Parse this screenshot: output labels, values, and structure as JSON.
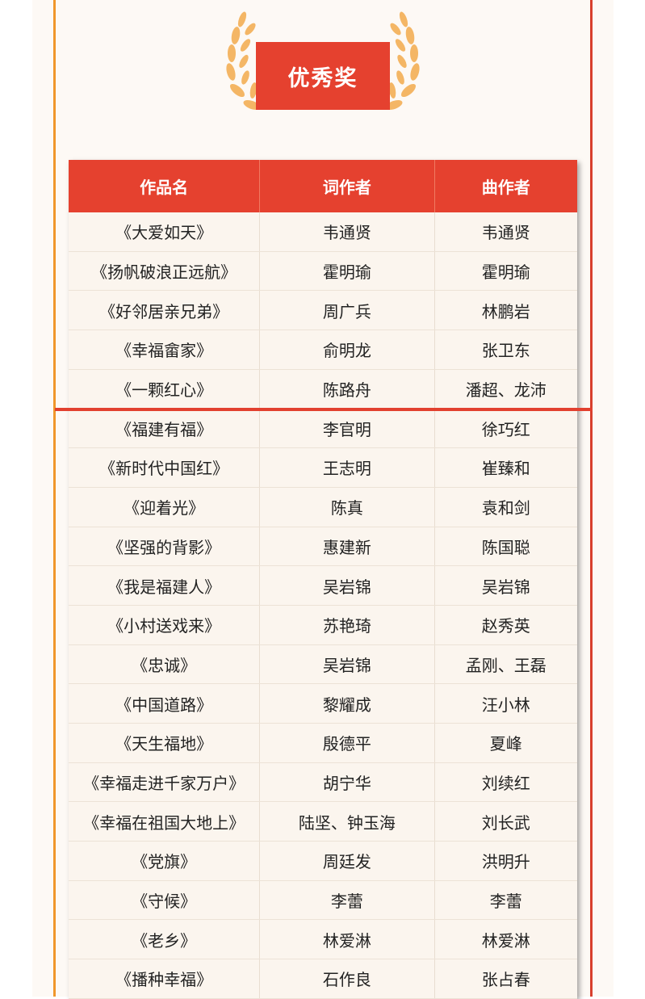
{
  "award_title": "优秀奖",
  "colors": {
    "accent_red": "#e5412f",
    "accent_orange": "#f0972c",
    "laurel": "#f4b665",
    "panel": "#fdf9f5"
  },
  "table": {
    "headers": [
      "作品名",
      "词作者",
      "曲作者"
    ],
    "rows": [
      [
        "《大爱如天》",
        "韦通贤",
        "韦通贤"
      ],
      [
        "《扬帆破浪正远航》",
        "霍明瑜",
        "霍明瑜"
      ],
      [
        "《好邻居亲兄弟》",
        "周广兵",
        "林鹏岩"
      ],
      [
        "《幸福畲家》",
        "俞明龙",
        "张卫东"
      ],
      [
        "《一颗红心》",
        "陈路舟",
        "潘超、龙沛"
      ],
      [
        "《福建有福》",
        "李官明",
        "徐巧红"
      ],
      [
        "《新时代中国红》",
        "王志明",
        "崔臻和"
      ],
      [
        "《迎着光》",
        "陈真",
        "袁和剑"
      ],
      [
        "《坚强的背影》",
        "惠建新",
        "陈国聪"
      ],
      [
        "《我是福建人》",
        "吴岩锦",
        "吴岩锦"
      ],
      [
        "《小村送戏来》",
        "苏艳琦",
        "赵秀英"
      ],
      [
        "《忠诚》",
        "吴岩锦",
        "孟刚、王磊"
      ],
      [
        "《中国道路》",
        "黎耀成",
        "汪小林"
      ],
      [
        "《天生福地》",
        "殷德平",
        "夏峰"
      ],
      [
        "《幸福走进千家万户》",
        "胡宁华",
        "刘续红"
      ],
      [
        "《幸福在祖国大地上》",
        "陆坚、钟玉海",
        "刘长武"
      ],
      [
        "《党旗》",
        "周廷发",
        "洪明升"
      ],
      [
        "《守候》",
        "李蕾",
        "李蕾"
      ],
      [
        "《老乡》",
        "林爱淋",
        "林爱淋"
      ],
      [
        "《播种幸福》",
        "石作良",
        "张占春"
      ]
    ]
  }
}
